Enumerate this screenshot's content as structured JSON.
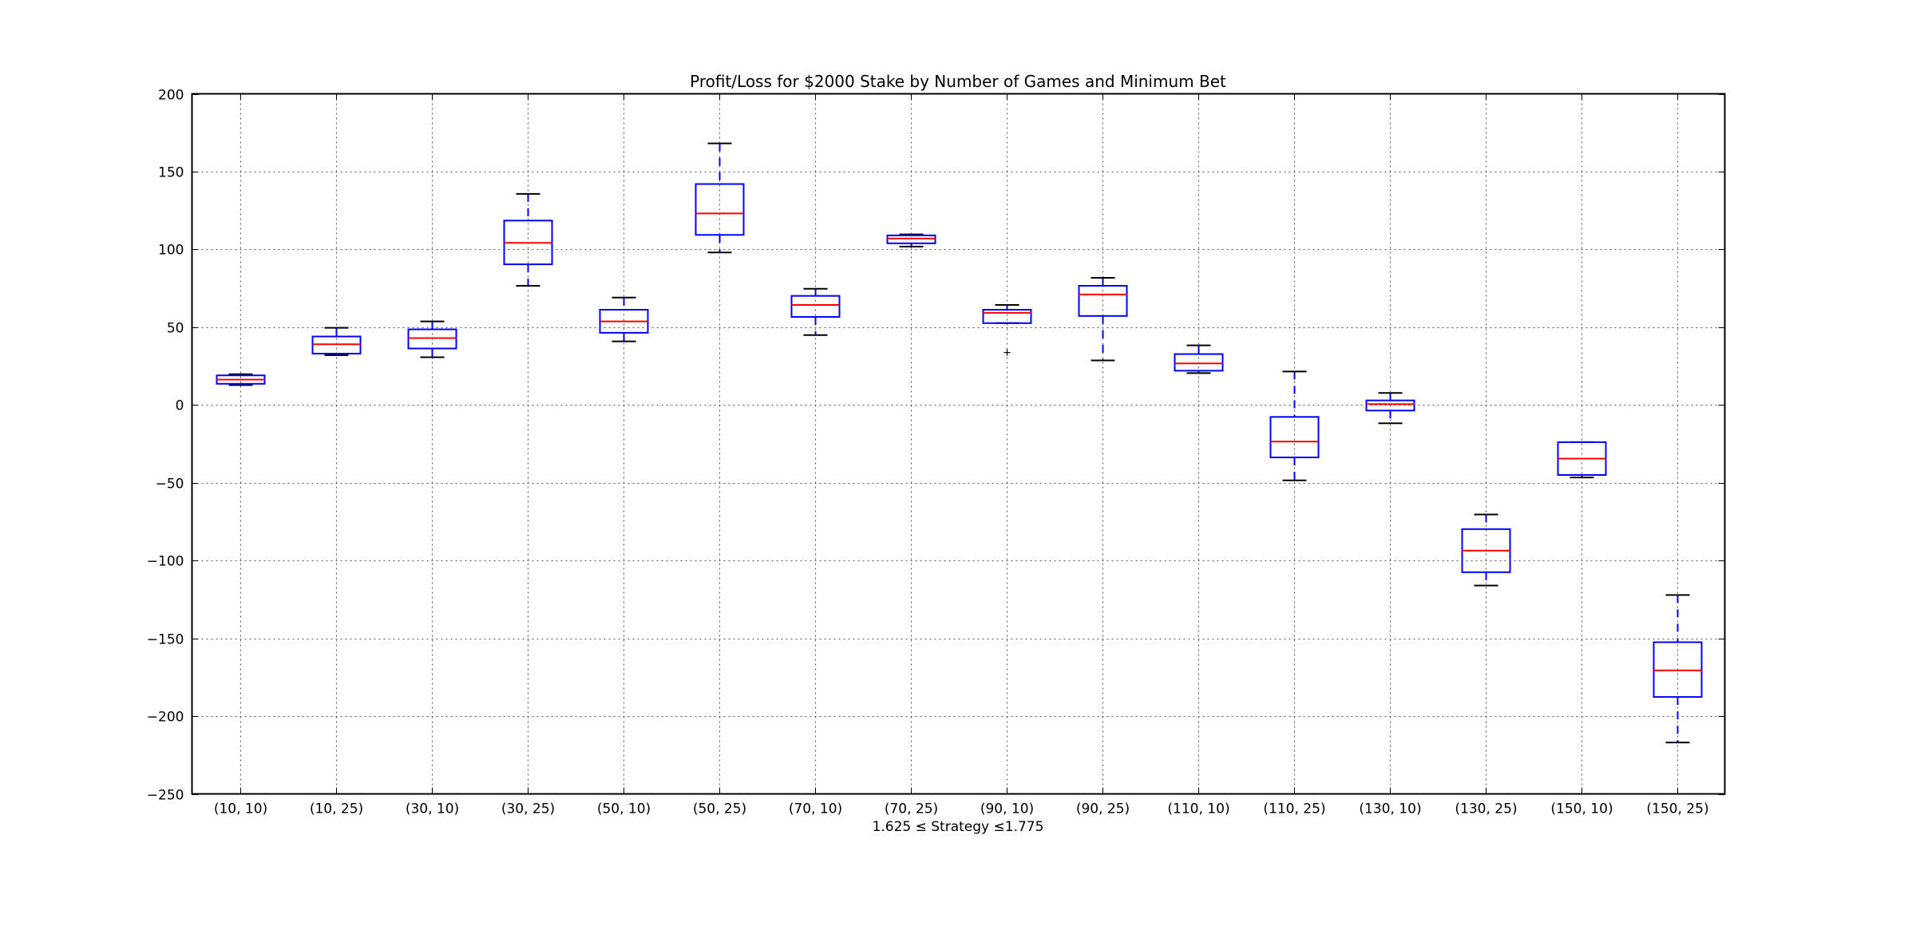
{
  "chart_data": {
    "type": "boxplot",
    "title": "Profit/Loss for $2000 Stake by Number of Games and Minimum Bet",
    "xlabel": "1.625 ≤ Strategy ≤1.775",
    "ylabel": "",
    "ylim": [
      -250,
      200
    ],
    "yticks": [
      200,
      150,
      100,
      50,
      0,
      -50,
      -100,
      -150,
      -200,
      -250
    ],
    "ytick_labels": [
      "200",
      "150",
      "100",
      "50",
      "0",
      "−50",
      "−100",
      "−150",
      "−200",
      "−250"
    ],
    "grid": true,
    "categories": [
      "(10, 10)",
      "(10, 25)",
      "(30, 10)",
      "(30, 25)",
      "(50, 10)",
      "(50, 25)",
      "(70, 10)",
      "(70, 25)",
      "(90, 10)",
      "(90, 25)",
      "(110, 10)",
      "(110, 25)",
      "(130, 10)",
      "(130, 25)",
      "(150, 10)",
      "(150, 25)"
    ],
    "boxes": [
      {
        "label": "(10, 10)",
        "whisker_low": 12.8,
        "q1": 13.6,
        "median": 16.3,
        "q3": 19.0,
        "whisker_high": 19.8,
        "outliers": []
      },
      {
        "label": "(10, 25)",
        "whisker_low": 32.0,
        "q1": 33.0,
        "median": 39.0,
        "q3": 44.0,
        "whisker_high": 49.6,
        "outliers": []
      },
      {
        "label": "(30, 10)",
        "whisker_low": 30.7,
        "q1": 36.3,
        "median": 43.0,
        "q3": 48.6,
        "whisker_high": 53.7,
        "outliers": []
      },
      {
        "label": "(30, 25)",
        "whisker_low": 76.6,
        "q1": 90.4,
        "median": 104.2,
        "q3": 118.5,
        "whisker_high": 135.7,
        "outliers": []
      },
      {
        "label": "(50, 10)",
        "whisker_low": 40.9,
        "q1": 46.4,
        "median": 53.7,
        "q3": 61.2,
        "whisker_high": 69.0,
        "outliers": []
      },
      {
        "label": "(50, 25)",
        "whisker_low": 98.0,
        "q1": 109.3,
        "median": 123.1,
        "q3": 142.0,
        "whisker_high": 168.1,
        "outliers": []
      },
      {
        "label": "(70, 10)",
        "whisker_low": 44.9,
        "q1": 56.6,
        "median": 64.3,
        "q3": 70.1,
        "whisker_high": 74.7,
        "outliers": []
      },
      {
        "label": "(70, 25)",
        "whisker_low": 101.8,
        "q1": 103.9,
        "median": 107.0,
        "q3": 109.0,
        "whisker_high": 109.6,
        "outliers": []
      },
      {
        "label": "(90, 10)",
        "whisker_low": 52.6,
        "q1": 52.6,
        "median": 59.2,
        "q3": 61.2,
        "whisker_high": 64.3,
        "outliers": [
          33.7
        ]
      },
      {
        "label": "(90, 25)",
        "whisker_low": 28.6,
        "q1": 57.2,
        "median": 71.0,
        "q3": 76.6,
        "whisker_high": 81.7,
        "outliers": []
      },
      {
        "label": "(110, 10)",
        "whisker_low": 20.5,
        "q1": 22.0,
        "median": 26.7,
        "q3": 32.7,
        "whisker_high": 38.3,
        "outliers": []
      },
      {
        "label": "(110, 25)",
        "whisker_low": -48.5,
        "q1": -33.7,
        "median": -23.5,
        "q3": -7.7,
        "whisker_high": 21.5,
        "outliers": []
      },
      {
        "label": "(130, 10)",
        "whisker_low": -11.8,
        "q1": -3.6,
        "median": 0.5,
        "q3": 2.9,
        "whisker_high": 7.7,
        "outliers": []
      },
      {
        "label": "(130, 25)",
        "whisker_low": -116.1,
        "q1": -107.5,
        "median": -93.6,
        "q3": -79.8,
        "whisker_high": -70.4,
        "outliers": []
      },
      {
        "label": "(150, 10)",
        "whisker_low": -46.6,
        "q1": -45.0,
        "median": -34.5,
        "q3": -23.9,
        "whisker_high": -23.9,
        "outliers": []
      },
      {
        "label": "(150, 25)",
        "whisker_low": -217.0,
        "q1": -187.7,
        "median": -170.6,
        "q3": -152.5,
        "whisker_high": -122.2,
        "outliers": []
      }
    ],
    "colors": {
      "box": "#0000ff",
      "median": "#ff0000",
      "whisker": "#0000ff",
      "cap": "#000000",
      "grid": "#555555",
      "axes": "#000000"
    }
  }
}
